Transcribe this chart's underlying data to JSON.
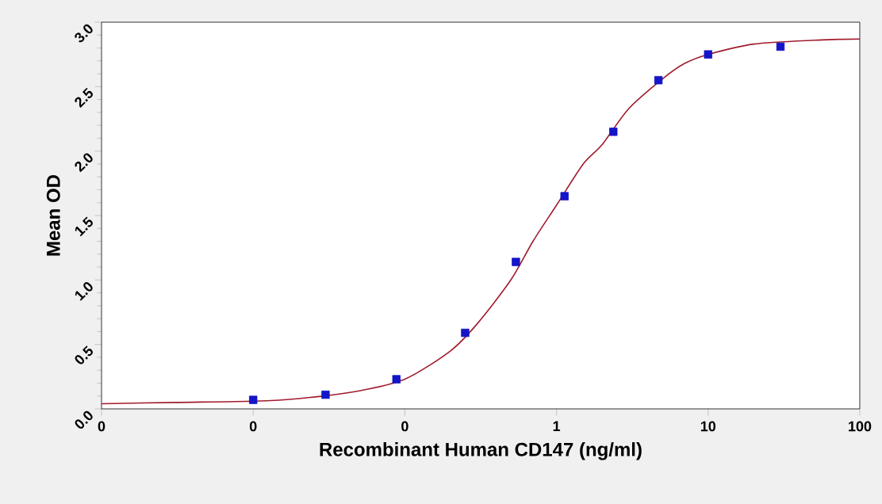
{
  "chart_data": {
    "type": "scatter",
    "xlabel": "Recombinant Human CD147 (ng/ml)",
    "ylabel": "Mean OD",
    "log": "x",
    "xlim": [
      0.001,
      100
    ],
    "xticks": [
      {
        "value": 0.001,
        "label": "0"
      },
      {
        "value": 0.01,
        "label": "0"
      },
      {
        "value": 0.1,
        "label": "0"
      },
      1,
      10,
      100
    ],
    "ylim": [
      0,
      3.0
    ],
    "yticks": [
      {
        "value": 0,
        "label": "0.0"
      },
      0.5,
      {
        "value": 1,
        "label": "1.0"
      },
      1.5,
      {
        "value": 2,
        "label": "2.0"
      },
      2.5,
      {
        "value": 3,
        "label": "3.0"
      }
    ],
    "grid": false,
    "series": [
      {
        "type": "line",
        "color": "#a01c2c",
        "marker": "none",
        "line_style": "solid",
        "x": [
          0.001,
          0.003,
          0.01,
          0.02,
          0.05,
          0.1,
          0.2,
          0.3,
          0.5,
          0.7,
          1,
          1.5,
          2,
          3,
          5,
          7,
          10,
          20,
          50,
          100
        ],
        "values": [
          0.04,
          0.05,
          0.06,
          0.08,
          0.14,
          0.23,
          0.45,
          0.66,
          1.0,
          1.3,
          1.58,
          1.9,
          2.05,
          2.33,
          2.56,
          2.68,
          2.75,
          2.83,
          2.86,
          2.87
        ]
      },
      {
        "color": "#1414c8",
        "marker": "square",
        "x": [
          0.01,
          0.03,
          0.088,
          0.25,
          0.54,
          1.13,
          2.37,
          4.7,
          10,
          30
        ],
        "values": [
          0.07,
          0.11,
          0.23,
          0.59,
          1.14,
          1.65,
          2.15,
          2.55,
          2.75,
          2.81
        ]
      }
    ]
  }
}
